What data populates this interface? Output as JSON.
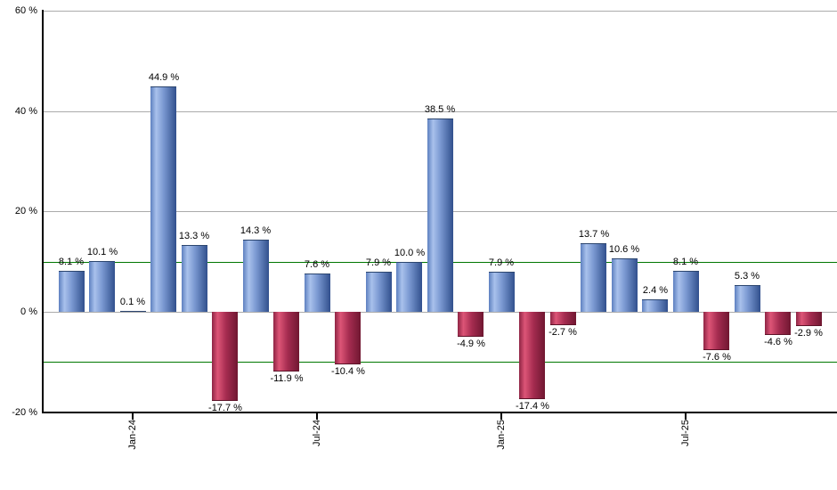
{
  "chart_data": {
    "type": "bar",
    "title": "",
    "unit": "%",
    "values": [
      8.1,
      10.1,
      0.1,
      44.9,
      13.3,
      -17.7,
      14.3,
      -11.9,
      7.6,
      -10.4,
      7.9,
      10.0,
      38.5,
      -4.9,
      7.9,
      -17.4,
      -2.7,
      13.7,
      10.6,
      2.4,
      8.1,
      -7.6,
      5.3,
      -4.6,
      -2.9
    ],
    "bar_labels": [
      "8.1 %",
      "10.1 %",
      "0.1 %",
      "44.9 %",
      "13.3 %",
      "-17.7 %",
      "14.3 %",
      "-11.9 %",
      "7.6 %",
      "-10.4 %",
      "7.9 %",
      "10.0 %",
      "38.5 %",
      "-4.9 %",
      "7.9 %",
      "-17.4 %",
      "-2.7 %",
      "13.7 %",
      "10.6 %",
      "2.4 %",
      "8.1 %",
      "-7.6 %",
      "5.3 %",
      "-4.6 %",
      "-2.9 %"
    ],
    "x_ticks": [
      {
        "label": "Jan-24",
        "bar_index": 2
      },
      {
        "label": "Jul-24",
        "bar_index": 8
      },
      {
        "label": "Jan-25",
        "bar_index": 14
      },
      {
        "label": "Jul-25",
        "bar_index": 20
      }
    ],
    "y_ticks": [
      {
        "label": "60 %",
        "value": 60
      },
      {
        "label": "40 %",
        "value": 40
      },
      {
        "label": "20 %",
        "value": 20
      },
      {
        "label": "0 %",
        "value": 0
      },
      {
        "label": "-20 %",
        "value": -20
      }
    ],
    "ylim": [
      -20,
      60
    ],
    "reference_lines": [
      {
        "value": 10,
        "color": "#007700"
      },
      {
        "value": -10,
        "color": "#007700"
      }
    ],
    "colors": {
      "positive_bar_gradient": [
        "#5d80c0",
        "#a9c1ec",
        "#7b99d2",
        "#31508d"
      ],
      "negative_bar_gradient": [
        "#8e2444",
        "#dd5577",
        "#a52c50",
        "#701731"
      ],
      "gridline": "#ababab",
      "reference_line": "#007700",
      "axis": "#000000",
      "label_text": "#000000",
      "background": "#ffffff"
    },
    "legend": null
  }
}
